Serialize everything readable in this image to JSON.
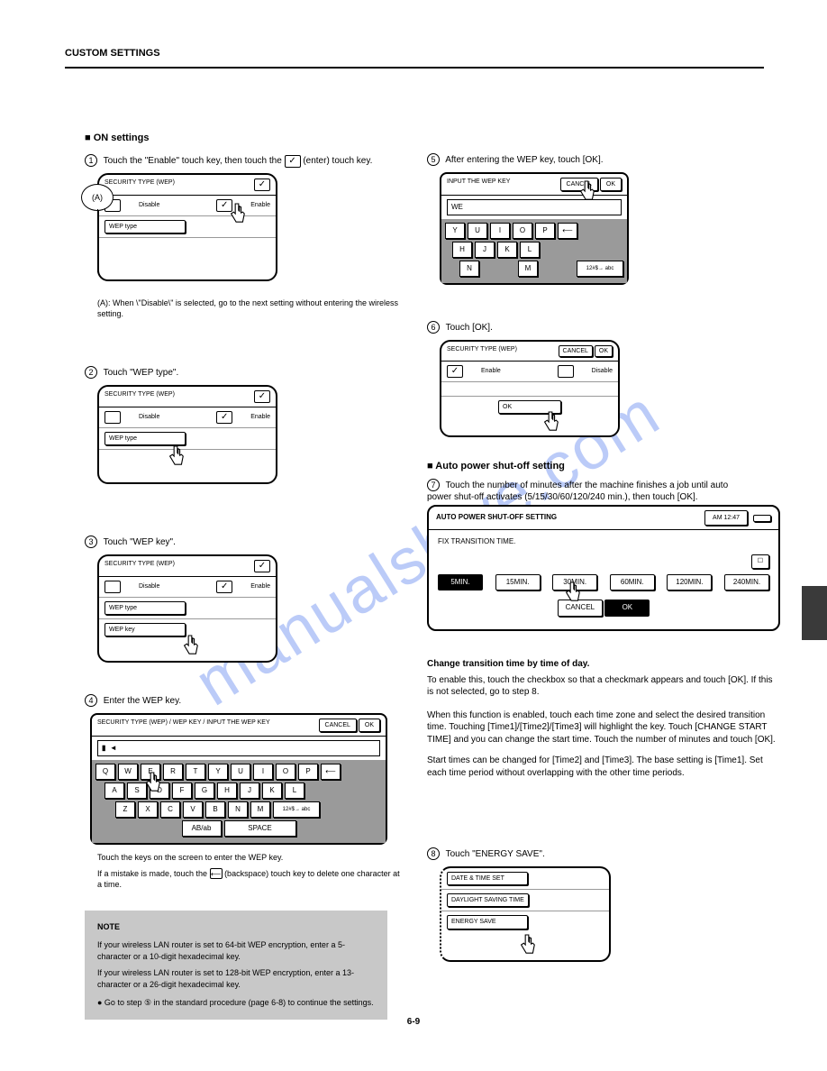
{
  "page": {
    "title": "CUSTOM SETTINGS",
    "footer": "6-9",
    "watermark": "manualshive.com"
  },
  "section": {
    "heading": "■ ON settings",
    "intro_bold": "enable"
  },
  "steps": {
    "s1": {
      "num": "1",
      "text": "Touch the \"Enable\" touch key, then touch the "
    },
    "s1_tail": " (enter) touch key.",
    "s2": {
      "num": "2",
      "text": "Touch \"WEP type\"."
    },
    "s3": {
      "num": "3",
      "text": "Touch \"WEP key\"."
    },
    "s4": {
      "num": "4",
      "text": "Enter the WEP key."
    },
    "s5": {
      "num": "5",
      "text": "After entering the WEP key, touch [OK]."
    },
    "s6": {
      "num": "6",
      "text": "Touch [OK]."
    },
    "s7": {
      "num": "7",
      "text": "Touch [OK]."
    }
  },
  "small": {
    "a_label": "(A)",
    "disable": "Disable",
    "enable": "Enable",
    "weptype": "WEP type",
    "wepkey": "WEP key",
    "cancel": "CANCEL",
    "ok": "OK",
    "space": "SPACE",
    "ab": "AB/ab",
    "mode": "12#$→ abc",
    "security": "SECURITY TYPE (WEP)",
    "back_arrow": "◄"
  },
  "kbd_caption_1": "Touch the keys on the screen to enter the WEP key.",
  "kbd_sub": "SECURITY TYPE (WEP) / WEP KEY / INPUT THE WEP KEY",
  "kbd_footnote": "If a mistake is made, touch the      (backspace) touch key to delete one character at a time.",
  "row1": [
    "Q",
    "W",
    "E",
    "R",
    "T",
    "Y",
    "U",
    "I",
    "O",
    "P",
    "⟵"
  ],
  "row2": [
    "A",
    "S",
    "D",
    "F",
    "G",
    "H",
    "J",
    "K",
    "L"
  ],
  "row3": [
    "Z",
    "X",
    "C",
    "V",
    "B",
    "N",
    "M"
  ],
  "half_row1": [
    "Y",
    "U",
    "I",
    "O",
    "P",
    "⟵"
  ],
  "half_row2": [
    "H",
    "J",
    "K",
    "L"
  ],
  "half_row3": [
    "N",
    "M"
  ],
  "note": {
    "title": "NOTE",
    "line1": "If your wireless LAN router is set to 64-bit WEP encryption, enter a 5-character or a 10-digit hexadecimal key.",
    "line2": "If your wireless LAN router is set to 128-bit WEP encryption, enter a 13-character or a 26-digit hexadecimal key.",
    "line3": "● Go to step ⑤ in the standard procedure (page 6-8) to continue the settings."
  },
  "auto_off": {
    "header": "AUTO POWER SHUT-OFF SETTING",
    "sub": "FIX TRANSITION TIME.",
    "cancel": "CANCEL",
    "ok": "OK",
    "options": [
      "5MIN.",
      "15MIN.",
      "30MIN.",
      "60MIN.",
      "120MIN.",
      "240MIN."
    ],
    "timeL": "AM 12:47",
    "timeR": ""
  },
  "right_text": {
    "auto_intro": "■ Auto power shut-off setting",
    "auto_line": "Touch the number of minutes after the machine finishes a job until auto power shut-off activates (5/15/30/60/120/240 min.), then touch [OK].",
    "auto_opt_bold": "Change transition time by time of day.",
    "auto_opt_text": "To enable this, touch the checkbox so that a checkmark appears and touch [OK]. If this is not selected, go to step 8.",
    "energy": "Touch \"ENERGY SAVE\".",
    "inputkey": "INPUT THE WEP KEY",
    "note_para": "When this function is enabled, touch each time zone and select the desired transition time. Touching [Time1]/[Time2]/[Time3] will highlight the key. Touch [CHANGE START TIME] and you can change the start time. Touch the number of minutes and touch [OK].",
    "note_para2": "Start times can be changed for [Time2] and [Time3]. The base setting is [Time1]. Set each time period without overlapping with the other time periods."
  },
  "menu": {
    "i1": "DATE & TIME SET",
    "i2": "DAYLIGHT SAVING TIME",
    "i3": "ENERGY SAVE"
  }
}
